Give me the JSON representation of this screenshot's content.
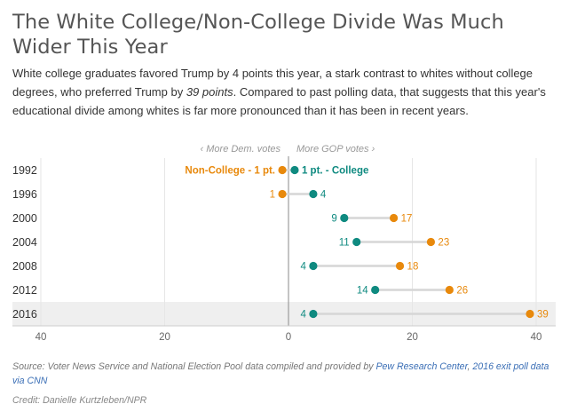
{
  "header": {
    "title": "The White College/Non-College Divide Was Much Wider This Year",
    "subtitle_part1": "White college graduates favored Trump by 4 points this year, a stark contrast to whites without college degrees, who preferred Trump by ",
    "subtitle_emph": "39 points",
    "subtitle_part2": ". Compared to past polling data, that suggests that this year's educational divide among whites is far more pronounced than it has been in recent years."
  },
  "chart_data": {
    "type": "scatter",
    "subtype": "dot-range",
    "direction_labels": {
      "left": "‹ More Dem. votes",
      "right": "More GOP votes ›"
    },
    "categories": [
      "1992",
      "1996",
      "2000",
      "2004",
      "2008",
      "2012",
      "2016"
    ],
    "series": [
      {
        "name": "Non-College",
        "color": "#e8890c",
        "values": [
          -1,
          -1,
          17,
          23,
          18,
          26,
          39
        ]
      },
      {
        "name": "College",
        "color": "#0f8a80",
        "values": [
          1,
          4,
          9,
          11,
          4,
          14,
          4
        ]
      }
    ],
    "point_labels": {
      "Non-College": [
        "Non-College - 1 pt.",
        "1",
        "17",
        "23",
        "18",
        "26",
        "39"
      ],
      "College": [
        "1 pt. - College",
        "4",
        "9",
        "11",
        "4",
        "14",
        "4"
      ]
    },
    "highlighted_category": "2016",
    "xlim": [
      -40,
      40
    ],
    "xticks": [
      40,
      20,
      0,
      20,
      40
    ],
    "xtick_values": [
      -40,
      -20,
      0,
      20,
      40
    ],
    "grid": true,
    "connector_color": "#d6d6d6",
    "highlight_color": "#efefef"
  },
  "footer": {
    "source_prefix": "Source: Voter News Service and National Election Pool data compiled and provided by ",
    "source_link1": "Pew Research Center",
    "source_sep": ", ",
    "source_link2": "2016 exit poll data via CNN",
    "credit": "Credit: Danielle Kurtzleben/NPR"
  }
}
